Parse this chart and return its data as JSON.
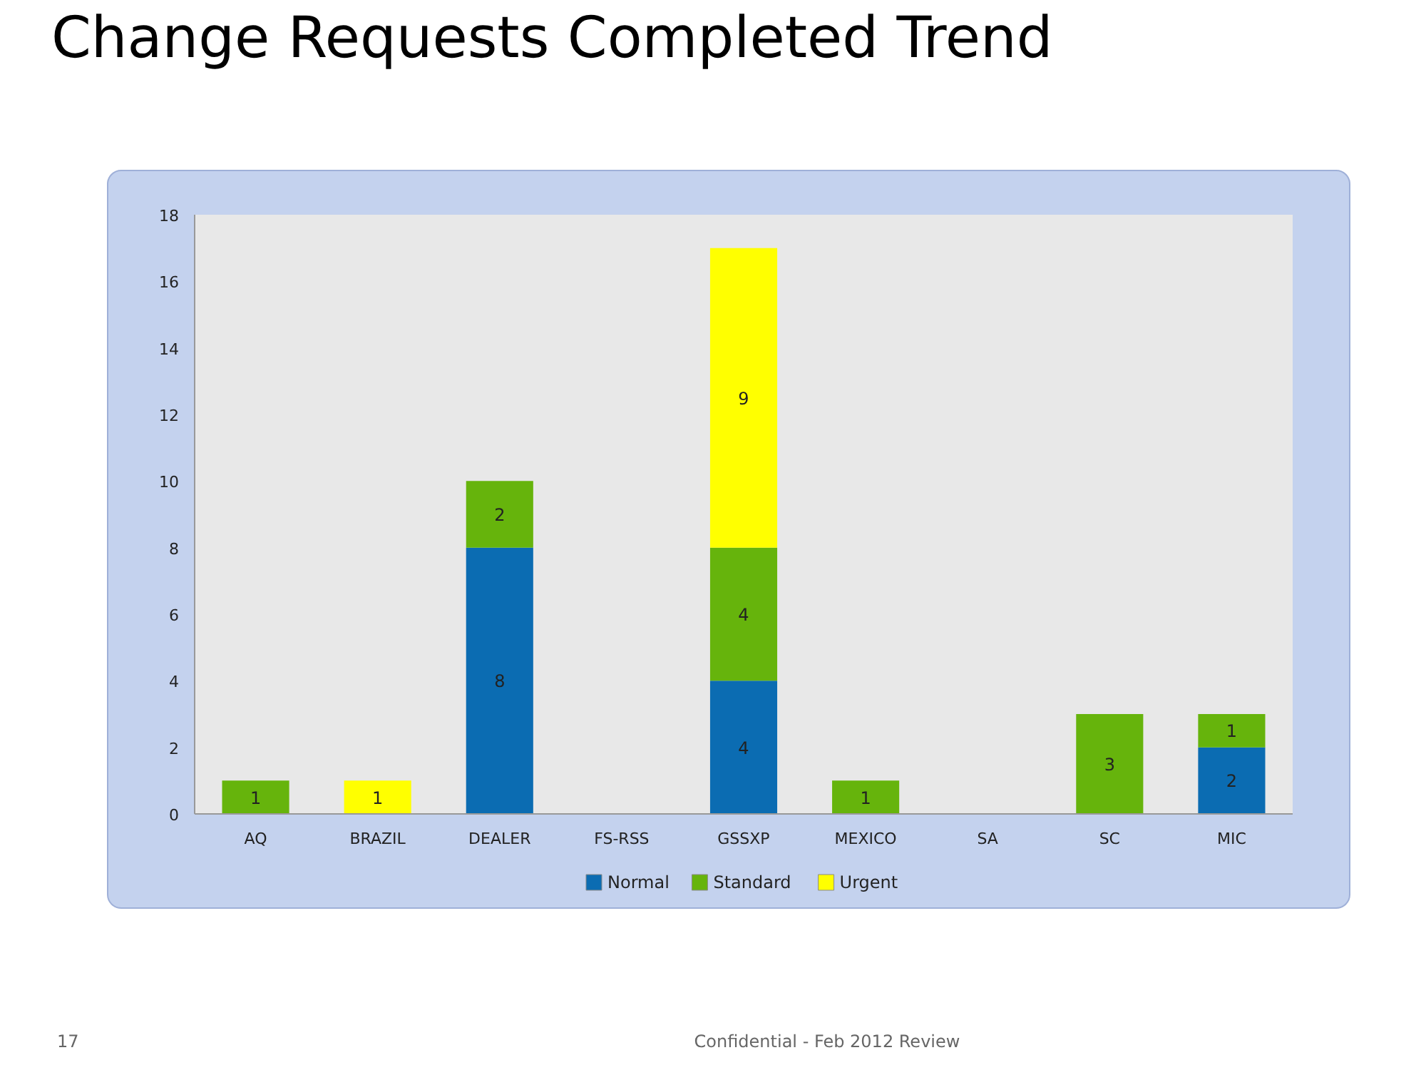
{
  "chart_data": {
    "type": "bar",
    "title": "Change Requests Completed Trend",
    "categories": [
      "AQ",
      "BRAZIL",
      "DEALER",
      "FS-RSS",
      "GSSXP",
      "MEXICO",
      "SA",
      "SC",
      "MIC"
    ],
    "series": [
      {
        "name": "Normal",
        "color": "#0b6cb2",
        "values": [
          null,
          null,
          8,
          null,
          4,
          null,
          null,
          null,
          2
        ]
      },
      {
        "name": "Standard",
        "color": "#66b40c",
        "values": [
          1,
          null,
          2,
          null,
          4,
          1,
          null,
          3,
          1
        ]
      },
      {
        "name": "Urgent",
        "color": "#ffff00",
        "values": [
          null,
          1,
          null,
          null,
          9,
          null,
          null,
          null,
          null
        ]
      }
    ],
    "stacked": true,
    "data_labels": true,
    "ylim": [
      0,
      18
    ],
    "yticks": [
      0,
      2,
      4,
      6,
      8,
      10,
      12,
      14,
      16,
      18
    ],
    "legend": "bottom",
    "annotations": [
      "17",
      "Confidential - Feb 2012 Review"
    ]
  }
}
